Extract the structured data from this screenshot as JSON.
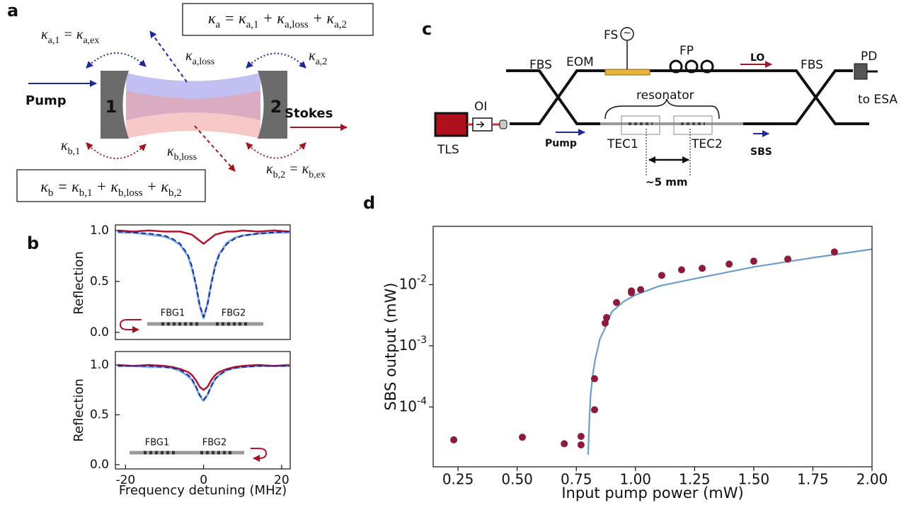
{
  "panel_a": {
    "label": "a",
    "kappa_a_total": [
      "κ",
      "a",
      " = κ",
      "a,1",
      " + κ",
      "a,loss",
      " + κ",
      "a,2"
    ],
    "kappa_a1": [
      "κ",
      "a,1",
      " = κ",
      "a,ex"
    ],
    "kappa_a_loss": [
      "κ",
      "a,loss"
    ],
    "kappa_a2": [
      "κ",
      "a,2"
    ],
    "pump": "Pump",
    "mirror_1": "1",
    "mirror_2": "2",
    "stokes": "Stokes",
    "kappa_b1": [
      "κ",
      "b,1"
    ],
    "kappa_b_loss": [
      "κ",
      "b,loss"
    ],
    "kappa_b2": [
      "κ",
      "b,2",
      " = κ",
      "b,ex"
    ],
    "kappa_b_total": [
      "κ",
      "b",
      " = κ",
      "b,1",
      " + κ",
      "b,loss",
      " + κ",
      "b,2"
    ]
  },
  "panel_b": {
    "label": "b"
  },
  "panel_c": {
    "label": "c",
    "fs": "FS",
    "fs_symbol": "~",
    "fp": "FP",
    "eom": "EOM",
    "lo": "LO",
    "fbs_left": "FBS",
    "fbs_right": "FBS",
    "pd": "PD",
    "to_esa": "to ESA",
    "oi": "OI",
    "tls": "TLS",
    "resonator": "resonator",
    "pump": "Pump",
    "tec1": "TEC1",
    "tec2": "TEC2",
    "sbs": "SBS",
    "distance": "~5 mm"
  },
  "panel_d": {
    "label": "d"
  },
  "chart_data": [
    {
      "type": "line",
      "ylabel": "Reflection",
      "annotations": [
        "FBG1",
        "FBG2"
      ],
      "x": [
        -22,
        -18,
        -14,
        -10,
        -8,
        -6,
        -4,
        -3,
        -2,
        -1,
        0,
        1,
        2,
        3,
        4,
        6,
        8,
        10,
        14,
        18,
        22
      ],
      "series": [
        {
          "color": "#7fb0e2",
          "style": "solid",
          "values": [
            0.98,
            0.98,
            0.96,
            0.94,
            0.91,
            0.86,
            0.75,
            0.63,
            0.47,
            0.26,
            0.14,
            0.28,
            0.49,
            0.66,
            0.77,
            0.88,
            0.93,
            0.95,
            0.97,
            0.98,
            0.98
          ]
        },
        {
          "color": "#b5122e",
          "style": "solid",
          "values": [
            1.0,
            0.99,
            1.0,
            0.99,
            0.99,
            0.99,
            0.97,
            0.96,
            0.93,
            0.9,
            0.87,
            0.9,
            0.93,
            0.96,
            0.97,
            0.99,
            0.99,
            1.0,
            0.99,
            1.0,
            0.99
          ]
        },
        {
          "color": "#1c2a9a",
          "style": "dashed",
          "values": [
            0.99,
            0.98,
            0.97,
            0.95,
            0.92,
            0.87,
            0.76,
            0.65,
            0.48,
            0.27,
            0.15,
            0.27,
            0.48,
            0.65,
            0.76,
            0.87,
            0.92,
            0.95,
            0.97,
            0.98,
            0.99
          ]
        }
      ],
      "xlim": [
        -22.6,
        22.2
      ],
      "ylim": [
        -0.07,
        1.055
      ],
      "yticks": [
        {
          "value": 0,
          "label": "0.0"
        },
        0.5,
        {
          "value": 1,
          "label": "1.0"
        }
      ]
    },
    {
      "type": "line",
      "xlabel": "Frequency detuning (MHz)",
      "ylabel": "Reflection",
      "annotations": [
        "FBG1",
        "FBG2"
      ],
      "x": [
        -22,
        -18,
        -14,
        -10,
        -8,
        -6,
        -4,
        -3,
        -2,
        -1,
        0,
        1,
        2,
        3,
        4,
        6,
        8,
        10,
        14,
        18,
        22
      ],
      "series": [
        {
          "color": "#7fb0e2",
          "style": "solid",
          "values": [
            0.99,
            0.99,
            0.98,
            0.98,
            0.97,
            0.94,
            0.89,
            0.85,
            0.78,
            0.69,
            0.64,
            0.7,
            0.79,
            0.86,
            0.9,
            0.95,
            0.97,
            0.98,
            0.99,
            0.99,
            0.99
          ]
        },
        {
          "color": "#b5122e",
          "style": "solid",
          "values": [
            1.0,
            0.99,
            1.0,
            0.99,
            0.98,
            0.96,
            0.93,
            0.9,
            0.85,
            0.78,
            0.75,
            0.78,
            0.85,
            0.9,
            0.93,
            0.96,
            0.98,
            0.99,
            1.0,
            0.99,
            1.0
          ]
        },
        {
          "color": "#1c2a9a",
          "style": "dashed",
          "values": [
            0.99,
            0.99,
            0.99,
            0.98,
            0.97,
            0.95,
            0.9,
            0.86,
            0.79,
            0.7,
            0.65,
            0.7,
            0.79,
            0.86,
            0.9,
            0.95,
            0.97,
            0.98,
            0.99,
            0.99,
            0.99
          ]
        }
      ],
      "xlim": [
        -22.6,
        22.2
      ],
      "ylim": [
        -0.043,
        1.135
      ],
      "xticks": [
        -20,
        0,
        20
      ],
      "yticks": [
        {
          "value": 0,
          "label": "0.0"
        },
        0.5,
        {
          "value": 1,
          "label": "1.0"
        }
      ]
    },
    {
      "type": "scatter",
      "xlabel": "Input pump power (mW)",
      "ylabel": "SBS output (mW)",
      "log_y": true,
      "series": [
        {
          "color": "#8e1a3c",
          "style": "markers",
          "x": [
            0.232,
            0.522,
            0.699,
            0.77,
            0.77,
            0.827,
            0.827,
            0.872,
            0.878,
            0.92,
            0.983,
            0.983,
            1.022,
            1.111,
            1.195,
            1.282,
            1.396,
            1.5,
            1.644,
            1.841
          ],
          "values": [
            2.9e-05,
            3.2e-05,
            2.5e-05,
            3.3e-05,
            2.4e-05,
            9e-05,
            0.00029,
            0.00235,
            0.0029,
            0.0051,
            0.0074,
            0.0079,
            0.0083,
            0.0142,
            0.0175,
            0.0185,
            0.0217,
            0.0242,
            0.0262,
            0.0343
          ]
        },
        {
          "color": "#6b9ccb",
          "style": "solid",
          "x": [
            0.8,
            0.805,
            0.81,
            0.82,
            0.83,
            0.85,
            0.87,
            0.9,
            0.95,
            1.0,
            1.1,
            1.25,
            1.5,
            1.75,
            2.0
          ],
          "values": [
            1.66e-05,
            6e-05,
            0.00015,
            0.00035,
            0.0006,
            0.0013,
            0.0019,
            0.0036,
            0.0053,
            0.0068,
            0.0095,
            0.0125,
            0.0195,
            0.0276,
            0.038
          ]
        }
      ],
      "xlim": [
        0.145,
        2.0
      ],
      "ylim": [
        1.05e-05,
        0.09
      ],
      "xticks": [
        0.25,
        {
          "value": 0.5,
          "label": "0.50"
        },
        0.75,
        {
          "value": 1,
          "label": "1.00"
        },
        1.25,
        {
          "value": 1.5,
          "label": "1.50"
        },
        1.75,
        {
          "value": 2,
          "label": "2.00"
        }
      ],
      "yticks": [
        {
          "value": 0.0001,
          "label": "10-4"
        },
        {
          "value": 0.001,
          "label": "10-3"
        },
        {
          "value": 0.01,
          "label": "10-2"
        }
      ]
    }
  ]
}
